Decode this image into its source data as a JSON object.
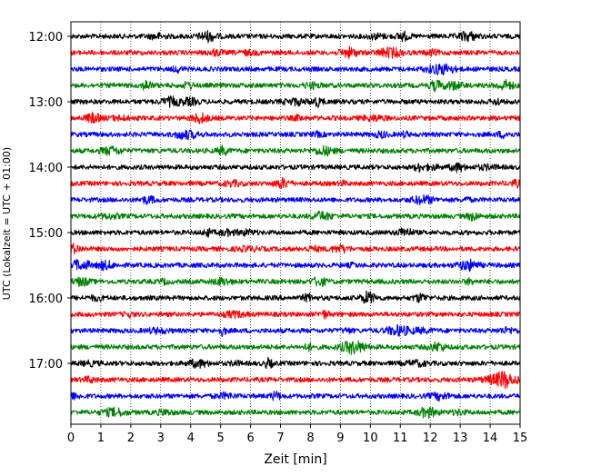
{
  "chart_data": {
    "type": "line",
    "title": "",
    "xlabel": "Zeit  [min]",
    "ylabel": "UTC (Lokalzeit = UTC + 01:00)",
    "xlim": [
      0,
      15
    ],
    "x_ticks": [
      0,
      1,
      2,
      3,
      4,
      5,
      6,
      7,
      8,
      9,
      10,
      11,
      12,
      13,
      14,
      15
    ],
    "y_tick_labels": [
      "12:00",
      "13:00",
      "14:00",
      "15:00",
      "16:00",
      "17:00"
    ],
    "grid": "vertical dotted lines at each minute",
    "legend": "none",
    "series_colors": [
      "#000000",
      "#ff0000",
      "#0000ff",
      "#008000"
    ],
    "traces": [
      {
        "start": "12:00",
        "color": "#000000"
      },
      {
        "start": "12:15",
        "color": "#ff0000"
      },
      {
        "start": "12:30",
        "color": "#0000ff"
      },
      {
        "start": "12:45",
        "color": "#008000"
      },
      {
        "start": "13:00",
        "color": "#000000"
      },
      {
        "start": "13:15",
        "color": "#ff0000"
      },
      {
        "start": "13:30",
        "color": "#0000ff"
      },
      {
        "start": "13:45",
        "color": "#008000"
      },
      {
        "start": "14:00",
        "color": "#000000"
      },
      {
        "start": "14:15",
        "color": "#ff0000"
      },
      {
        "start": "14:30",
        "color": "#0000ff"
      },
      {
        "start": "14:45",
        "color": "#008000"
      },
      {
        "start": "15:00",
        "color": "#000000"
      },
      {
        "start": "15:15",
        "color": "#ff0000"
      },
      {
        "start": "15:30",
        "color": "#0000ff"
      },
      {
        "start": "15:45",
        "color": "#008000"
      },
      {
        "start": "16:00",
        "color": "#000000"
      },
      {
        "start": "16:15",
        "color": "#ff0000"
      },
      {
        "start": "16:30",
        "color": "#0000ff"
      },
      {
        "start": "16:45",
        "color": "#008000"
      },
      {
        "start": "17:00",
        "color": "#000000"
      },
      {
        "start": "17:15",
        "color": "#ff0000"
      },
      {
        "start": "17:30",
        "color": "#0000ff"
      },
      {
        "start": "17:45",
        "color": "#008000"
      }
    ]
  }
}
